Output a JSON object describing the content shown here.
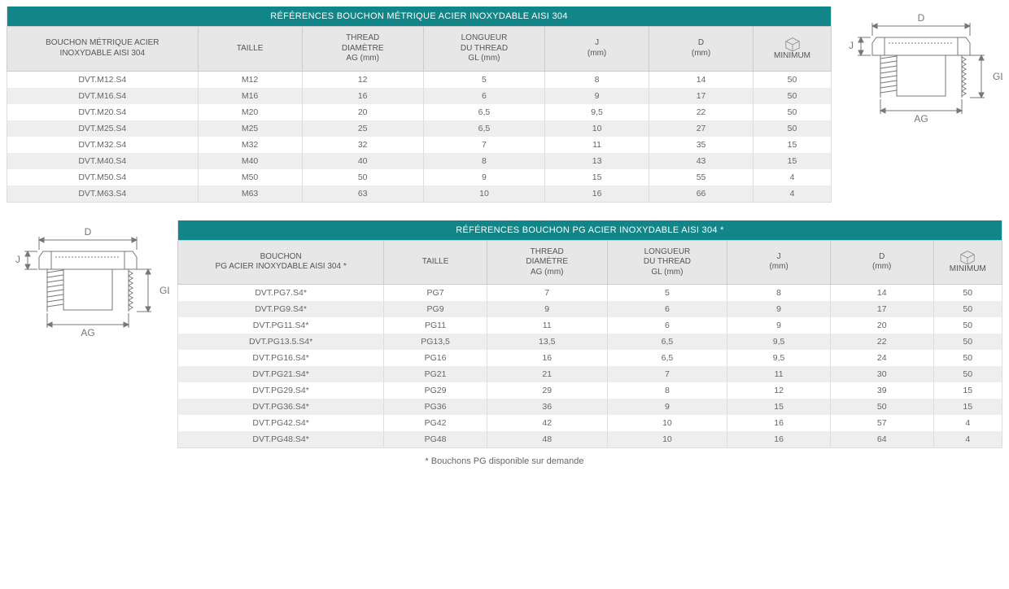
{
  "colors": {
    "header_bg": "#128589",
    "header_fg": "#ffffff",
    "th_bg": "#e7e7e7",
    "row_alt": "#eeeeee",
    "border": "#dddddd",
    "text": "#555555"
  },
  "diagram": {
    "labels": {
      "D": "D",
      "J": "J",
      "GL": "GL",
      "AG": "AG"
    },
    "stroke": "#777777",
    "stroke_width": 1
  },
  "box_icon": {
    "stroke": "#888888"
  },
  "table1": {
    "title": "RÉFÉRENCES BOUCHON MÉTRIQUE ACIER INOXYDABLE AISI 304",
    "col_widths_pct": [
      22,
      12,
      14,
      14,
      12,
      12,
      9
    ],
    "columns": [
      "BOUCHON MÉTRIQUE ACIER\nINOXYDABLE AISI 304",
      "TAILLE",
      "THREAD\nDIAMÈTRE\nAG (mm)",
      "LONGUEUR\nDU THREAD\nGL (mm)",
      "J\n(mm)",
      "D\n(mm)",
      "MINIMUM"
    ],
    "rows": [
      [
        "DVT.M12.S4",
        "M12",
        "12",
        "5",
        "8",
        "14",
        "50"
      ],
      [
        "DVT.M16.S4",
        "M16",
        "16",
        "6",
        "9",
        "17",
        "50"
      ],
      [
        "DVT.M20.S4",
        "M20",
        "20",
        "6,5",
        "9,5",
        "22",
        "50"
      ],
      [
        "DVT.M25.S4",
        "M25",
        "25",
        "6,5",
        "10",
        "27",
        "50"
      ],
      [
        "DVT.M32.S4",
        "M32",
        "32",
        "7",
        "11",
        "35",
        "15"
      ],
      [
        "DVT.M40.S4",
        "M40",
        "40",
        "8",
        "13",
        "43",
        "15"
      ],
      [
        "DVT.M50.S4",
        "M50",
        "50",
        "9",
        "15",
        "55",
        "4"
      ],
      [
        "DVT.M63.S4",
        "M63",
        "63",
        "10",
        "16",
        "66",
        "4"
      ]
    ]
  },
  "table2": {
    "title": "RÉFÉRENCES BOUCHON PG ACIER INOXYDABLE AISI 304 *",
    "col_widths_pct": [
      24,
      12,
      14,
      14,
      12,
      12,
      8
    ],
    "columns": [
      "BOUCHON\nPG ACIER INOXYDABLE AISI 304 *",
      "TAILLE",
      "THREAD\nDIAMÈTRE\nAG (mm)",
      "LONGUEUR\nDU THREAD\nGL (mm)",
      "J\n(mm)",
      "D\n(mm)",
      "MINIMUM"
    ],
    "rows": [
      [
        "DVT.PG7.S4*",
        "PG7",
        "7",
        "5",
        "8",
        "14",
        "50"
      ],
      [
        "DVT.PG9.S4*",
        "PG9",
        "9",
        "6",
        "9",
        "17",
        "50"
      ],
      [
        "DVT.PG11.S4*",
        "PG11",
        "11",
        "6",
        "9",
        "20",
        "50"
      ],
      [
        "DVT.PG13.5.S4*",
        "PG13,5",
        "13,5",
        "6,5",
        "9,5",
        "22",
        "50"
      ],
      [
        "DVT.PG16.S4*",
        "PG16",
        "16",
        "6,5",
        "9,5",
        "24",
        "50"
      ],
      [
        "DVT.PG21.S4*",
        "PG21",
        "21",
        "7",
        "11",
        "30",
        "50"
      ],
      [
        "DVT.PG29.S4*",
        "PG29",
        "29",
        "8",
        "12",
        "39",
        "15"
      ],
      [
        "DVT.PG36.S4*",
        "PG36",
        "36",
        "9",
        "15",
        "50",
        "15"
      ],
      [
        "DVT.PG42.S4*",
        "PG42",
        "42",
        "10",
        "16",
        "57",
        "4"
      ],
      [
        "DVT.PG48.S4*",
        "PG48",
        "48",
        "10",
        "16",
        "64",
        "4"
      ]
    ]
  },
  "footnote": "* Bouchons PG disponible sur demande"
}
